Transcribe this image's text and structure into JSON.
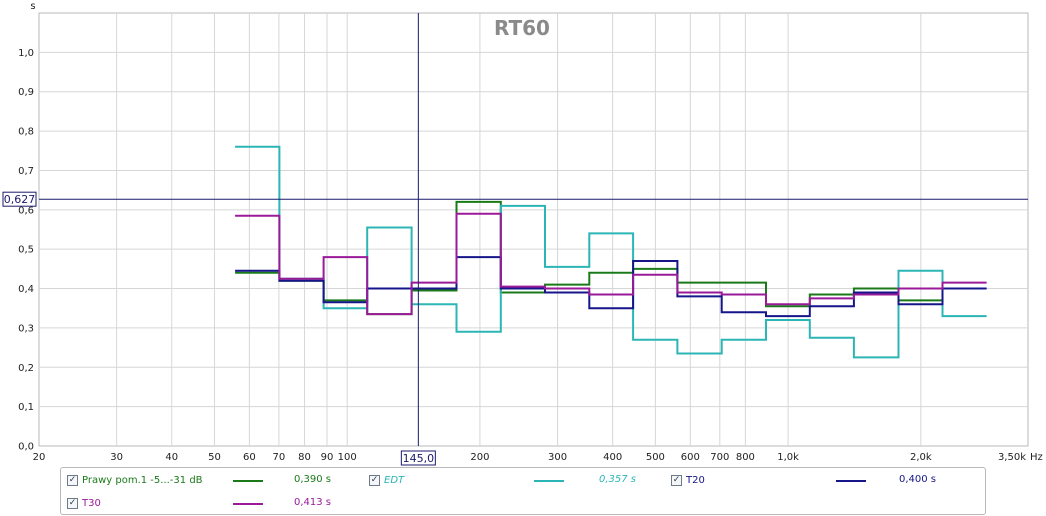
{
  "chart_data": {
    "type": "line",
    "title": "RT60",
    "ylabel": "s",
    "xunit": "Hz",
    "xscale": "log",
    "xlim": [
      20,
      3500
    ],
    "ylim": [
      0,
      1.1
    ],
    "grid": true,
    "x_ticks": [
      20,
      30,
      40,
      50,
      60,
      70,
      80,
      90,
      100,
      200,
      300,
      400,
      500,
      600,
      700,
      800,
      1000,
      2000,
      3500
    ],
    "x_tick_labels": [
      "20",
      "30",
      "40",
      "50",
      "60",
      "70",
      "80",
      "90",
      "100",
      "200",
      "300",
      "400",
      "500",
      "600",
      "700",
      "800",
      "1,0k",
      "2,0k",
      "3,50k"
    ],
    "y_ticks": [
      0,
      0.1,
      0.2,
      0.3,
      0.4,
      0.5,
      0.6,
      0.7,
      0.8,
      0.9,
      1.0
    ],
    "y_tick_labels": [
      "0,0",
      "0,1",
      "0,2",
      "0,3",
      "0,4",
      "0,5",
      "0,6",
      "0,7",
      "0,8",
      "0,9",
      "1,0"
    ],
    "cursor": {
      "x": 145,
      "y": 0.627,
      "x_label": "145,0",
      "y_label": "0,627"
    },
    "bands": [
      [
        55.7,
        70.2
      ],
      [
        70.2,
        88.4
      ],
      [
        88.4,
        111
      ],
      [
        111,
        140
      ],
      [
        140,
        177
      ],
      [
        177,
        223
      ],
      [
        223,
        281
      ],
      [
        281,
        354
      ],
      [
        354,
        445
      ],
      [
        445,
        561
      ],
      [
        561,
        707
      ],
      [
        707,
        891
      ],
      [
        891,
        1120
      ],
      [
        1120,
        1410
      ],
      [
        1410,
        1780
      ],
      [
        1780,
        2240
      ],
      [
        2240,
        2820
      ]
    ],
    "series": [
      {
        "name": "Prawy pom.1 -5...-31 dB",
        "color": "#1a7a1a",
        "legend_value": "0,390 s",
        "values": [
          0.44,
          0.42,
          0.37,
          0.335,
          0.395,
          0.62,
          0.39,
          0.41,
          0.44,
          0.45,
          0.415,
          0.415,
          0.355,
          0.385,
          0.4,
          0.37,
          0.4
        ]
      },
      {
        "name": "EDT",
        "color": "#2cb5b5",
        "legend_value": "0,357 s",
        "values": [
          0.76,
          0.425,
          0.35,
          0.555,
          0.36,
          0.29,
          0.61,
          0.455,
          0.54,
          0.27,
          0.235,
          0.27,
          0.32,
          0.275,
          0.225,
          0.445,
          0.33
        ]
      },
      {
        "name": "T20",
        "color": "#16168a",
        "legend_value": "0,400 s",
        "values": [
          0.445,
          0.42,
          0.365,
          0.4,
          0.4,
          0.48,
          0.4,
          0.39,
          0.35,
          0.47,
          0.38,
          0.34,
          0.33,
          0.355,
          0.39,
          0.36,
          0.4
        ]
      },
      {
        "name": "T30",
        "color": "#9a1a9a",
        "legend_value": "0,413 s",
        "values": [
          0.585,
          0.425,
          0.48,
          0.335,
          0.415,
          0.59,
          0.405,
          0.4,
          0.385,
          0.435,
          0.39,
          0.385,
          0.36,
          0.375,
          0.385,
          0.4,
          0.415
        ]
      }
    ]
  },
  "legend": [
    {
      "label": "Prawy pom.1 -5...-31 dB",
      "checked": "✓",
      "value": "0,390 s",
      "color": "#1a7a1a",
      "italic": false
    },
    {
      "label": "EDT",
      "checked": "✓",
      "value": "0,357 s",
      "color": "#2cb5b5",
      "italic": true
    },
    {
      "label": "T20",
      "checked": "✓",
      "value": "0,400 s",
      "color": "#16168a",
      "italic": false
    },
    {
      "label": "T30",
      "checked": "✓",
      "value": "0,413 s",
      "color": "#9a1a9a",
      "italic": false
    }
  ]
}
